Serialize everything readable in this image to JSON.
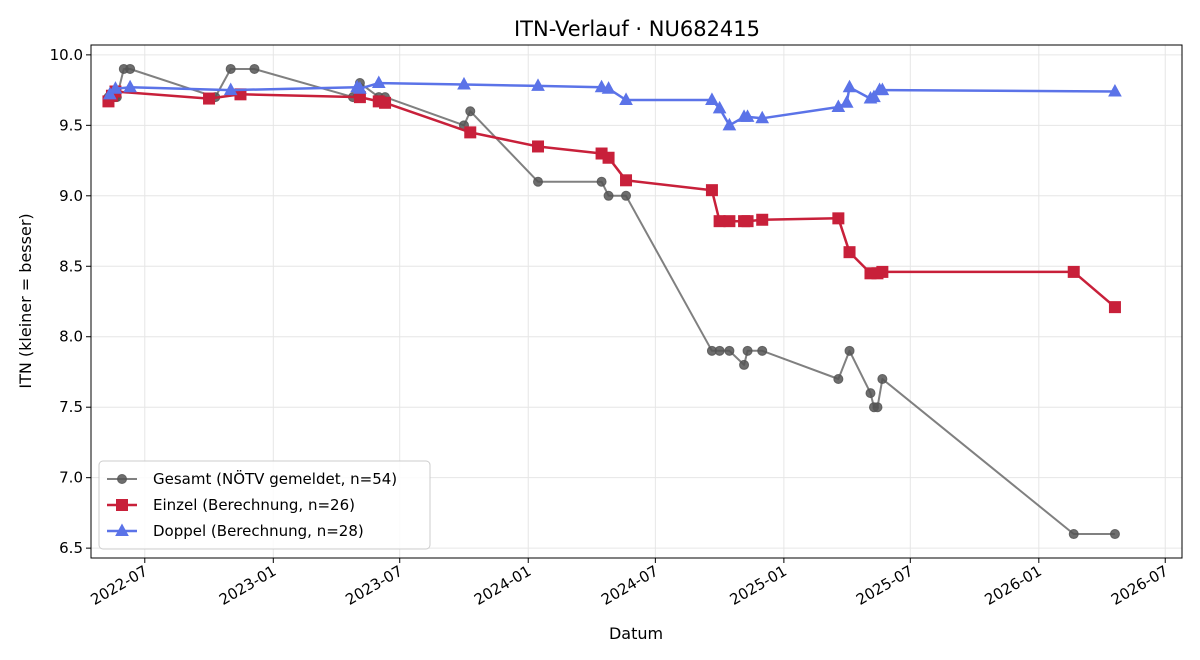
{
  "chart_data": {
    "type": "line",
    "title": "ITN-Verlauf · NU682415",
    "xlabel": "Datum",
    "ylabel": "ITN  (kleiner = besser)",
    "xlim": [
      "2022-04-15",
      "2026-07-25"
    ],
    "ylim": [
      6.43,
      10.07
    ],
    "grid": true,
    "legend_position": "lower-left",
    "x_ticks": [
      "2022-07-01",
      "2023-01-01",
      "2023-07-01",
      "2024-01-01",
      "2024-07-01",
      "2025-01-01",
      "2025-07-01",
      "2026-01-01",
      "2026-07-01"
    ],
    "x_tick_labels": [
      "2022-07",
      "2023-01",
      "2023-07",
      "2024-01",
      "2024-07",
      "2025-01",
      "2025-07",
      "2026-01",
      "2026-07"
    ],
    "y_ticks": [
      6.5,
      7.0,
      7.5,
      8.0,
      8.5,
      9.0,
      9.5,
      10.0
    ],
    "y_tick_labels": [
      "6.5",
      "7.0",
      "7.5",
      "8.0",
      "8.5",
      "9.0",
      "9.5",
      "10.0"
    ],
    "series": [
      {
        "name": "Gesamt (NÖTV gemeldet, n=54)",
        "color": "#555555",
        "marker": "circle",
        "x": [
          "2022-05-10",
          "2022-05-12",
          "2022-05-14",
          "2022-05-16",
          "2022-05-18",
          "2022-05-20",
          "2022-05-22",
          "2022-06-01",
          "2022-06-10",
          "2022-10-10",
          "2022-11-01",
          "2022-12-05",
          "2023-04-25",
          "2023-05-05",
          "2023-06-01",
          "2023-06-10",
          "2023-10-01",
          "2023-10-10",
          "2024-01-15",
          "2024-04-15",
          "2024-04-25",
          "2024-05-20",
          "2024-09-20",
          "2024-10-01",
          "2024-10-15",
          "2024-11-05",
          "2024-11-10",
          "2024-12-01",
          "2025-03-20",
          "2025-04-05",
          "2025-05-05",
          "2025-05-10",
          "2025-05-15",
          "2025-05-22",
          "2026-02-20",
          "2026-04-20"
        ],
        "y": [
          9.7,
          9.7,
          9.7,
          9.7,
          9.7,
          9.7,
          9.7,
          9.9,
          9.9,
          9.7,
          9.9,
          9.9,
          9.7,
          9.8,
          9.7,
          9.7,
          9.5,
          9.6,
          9.1,
          9.1,
          9.0,
          9.0,
          7.9,
          7.9,
          7.9,
          7.8,
          7.9,
          7.9,
          7.7,
          7.9,
          7.6,
          7.5,
          7.5,
          7.7,
          6.6,
          6.6
        ]
      },
      {
        "name": "Einzel (Berechnung, n=26)",
        "color": "#c8203a",
        "marker": "square",
        "x": [
          "2022-05-10",
          "2022-05-15",
          "2022-05-20",
          "2022-10-01",
          "2022-11-15",
          "2023-05-05",
          "2023-06-01",
          "2023-06-10",
          "2023-10-10",
          "2024-01-15",
          "2024-04-15",
          "2024-04-25",
          "2024-05-20",
          "2024-09-20",
          "2024-10-01",
          "2024-10-15",
          "2024-11-05",
          "2024-11-10",
          "2024-12-01",
          "2025-03-20",
          "2025-04-05",
          "2025-05-05",
          "2025-05-15",
          "2025-05-22",
          "2026-02-20",
          "2026-04-20"
        ],
        "y": [
          9.67,
          9.71,
          9.74,
          9.69,
          9.72,
          9.7,
          9.67,
          9.66,
          9.45,
          9.35,
          9.3,
          9.27,
          9.11,
          9.04,
          8.82,
          8.82,
          8.82,
          8.82,
          8.83,
          8.84,
          8.6,
          8.45,
          8.45,
          8.46,
          8.46,
          8.21
        ]
      },
      {
        "name": "Doppel (Berechnung, n=28)",
        "color": "#5b73e8",
        "marker": "triangle",
        "x": [
          "2022-05-12",
          "2022-05-20",
          "2022-06-10",
          "2022-11-01",
          "2023-05-01",
          "2023-05-05",
          "2023-06-01",
          "2023-10-01",
          "2024-01-15",
          "2024-04-15",
          "2024-04-25",
          "2024-05-20",
          "2024-09-20",
          "2024-10-01",
          "2024-10-15",
          "2024-11-05",
          "2024-11-10",
          "2024-12-01",
          "2025-03-20",
          "2025-04-01",
          "2025-04-05",
          "2025-05-05",
          "2025-05-10",
          "2025-05-18",
          "2025-05-22",
          "2026-04-20"
        ],
        "y": [
          9.72,
          9.76,
          9.77,
          9.75,
          9.77,
          9.76,
          9.8,
          9.79,
          9.78,
          9.77,
          9.76,
          9.68,
          9.68,
          9.62,
          9.5,
          9.56,
          9.56,
          9.55,
          9.63,
          9.66,
          9.77,
          9.69,
          9.7,
          9.75,
          9.75,
          9.74
        ]
      }
    ]
  }
}
